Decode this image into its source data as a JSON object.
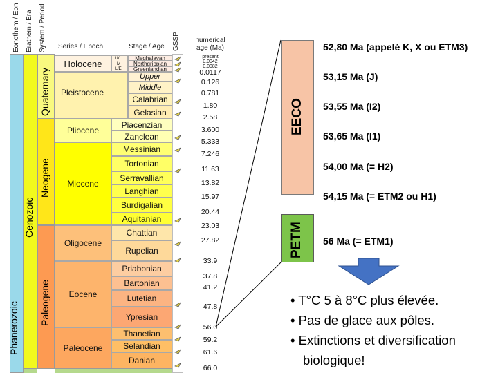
{
  "headers": {
    "eonothem": "Eonothem / Eon",
    "erathem": "Erathem / Era",
    "system": "System / Period",
    "series": "Series / Epoch",
    "stage": "Stage / Age",
    "gssp": "GSSP",
    "numerical": "numerical",
    "age_ma": "age (Ma)"
  },
  "eon": "Phanerozoic",
  "era": "Cenozoic",
  "periods": {
    "quaternary": "Quaternary",
    "neogene": "Neogene",
    "paleogene": "Paleogene"
  },
  "epochs": {
    "holocene": "Holocene",
    "pleistocene": "Pleistocene",
    "pliocene": "Pliocene",
    "miocene": "Miocene",
    "oligocene": "Oligocene",
    "eocene": "Eocene",
    "paleocene": "Paleocene"
  },
  "holocene_subs": [
    "U/L",
    "M",
    "L/E"
  ],
  "stages": {
    "meghalayan": "Meghalayan",
    "northgrippian": "Northgrippian",
    "greenlandian": "Greenlandian",
    "upper": "Upper",
    "middle": "Middle",
    "calabrian": "Calabrian",
    "gelasian": "Gelasian",
    "piacenzian": "Piacenzian",
    "zanclean": "Zanclean",
    "messinian": "Messinian",
    "tortonian": "Tortonian",
    "serravallian": "Serravallian",
    "langhian": "Langhian",
    "burdigalian": "Burdigalian",
    "aquitanian": "Aquitanian",
    "chattian": "Chattian",
    "rupelian": "Rupelian",
    "priabonian": "Priabonian",
    "bartonian": "Bartonian",
    "lutetian": "Lutetian",
    "ypresian": "Ypresian",
    "thanetian": "Thanetian",
    "selandian": "Selandian",
    "danian": "Danian"
  },
  "ages": {
    "present": "present",
    "a0042": "0.0042",
    "a0082": "0.0082",
    "a0117": "0.0117",
    "a0126": "0.126",
    "a0781": "0.781",
    "a180": "1.80",
    "a258": "2.58",
    "a3600": "3.600",
    "a5333": "5.333",
    "a7246": "7.246",
    "a1163": "11.63",
    "a1382": "13.82",
    "a1597": "15.97",
    "a2044": "20.44",
    "a2303": "23.03",
    "a2782": "27.82",
    "a339": "33.9",
    "a378": "37.8",
    "a412": "41.2",
    "a478": "47.8",
    "a560": "56.0",
    "a592": "59.2",
    "a616": "61.6",
    "a660": "66.0"
  },
  "eeco_label": "EECO",
  "petm_label": "PETM",
  "events": {
    "k": "52,80 Ma (appelé K, X ou ETM3)",
    "j": "53,15 Ma (J)",
    "i2": "53,55 Ma (I2)",
    "i1": "53,65 Ma (I1)",
    "h2": "54,00 Ma (= H2)",
    "h1": "54,15 Ma (= ETM2 ou H1)",
    "etm1": "56 Ma (= ETM1)"
  },
  "bullets": {
    "b1": "• T°C 5 à 8°C plus élevée.",
    "b2": "• Pas de glace aux pôles.",
    "b3": "• Extinctions et diversification",
    "b3b": "biologique!"
  },
  "colors": {
    "eon": "#9ad9ea",
    "era": "#f2f91d",
    "quaternary": "#f9f97f",
    "neogene": "#ffe619",
    "paleogene": "#fd9a52",
    "eeco": "#f7c4a6",
    "petm": "#7dc44a",
    "arrow": "#4472c4"
  }
}
